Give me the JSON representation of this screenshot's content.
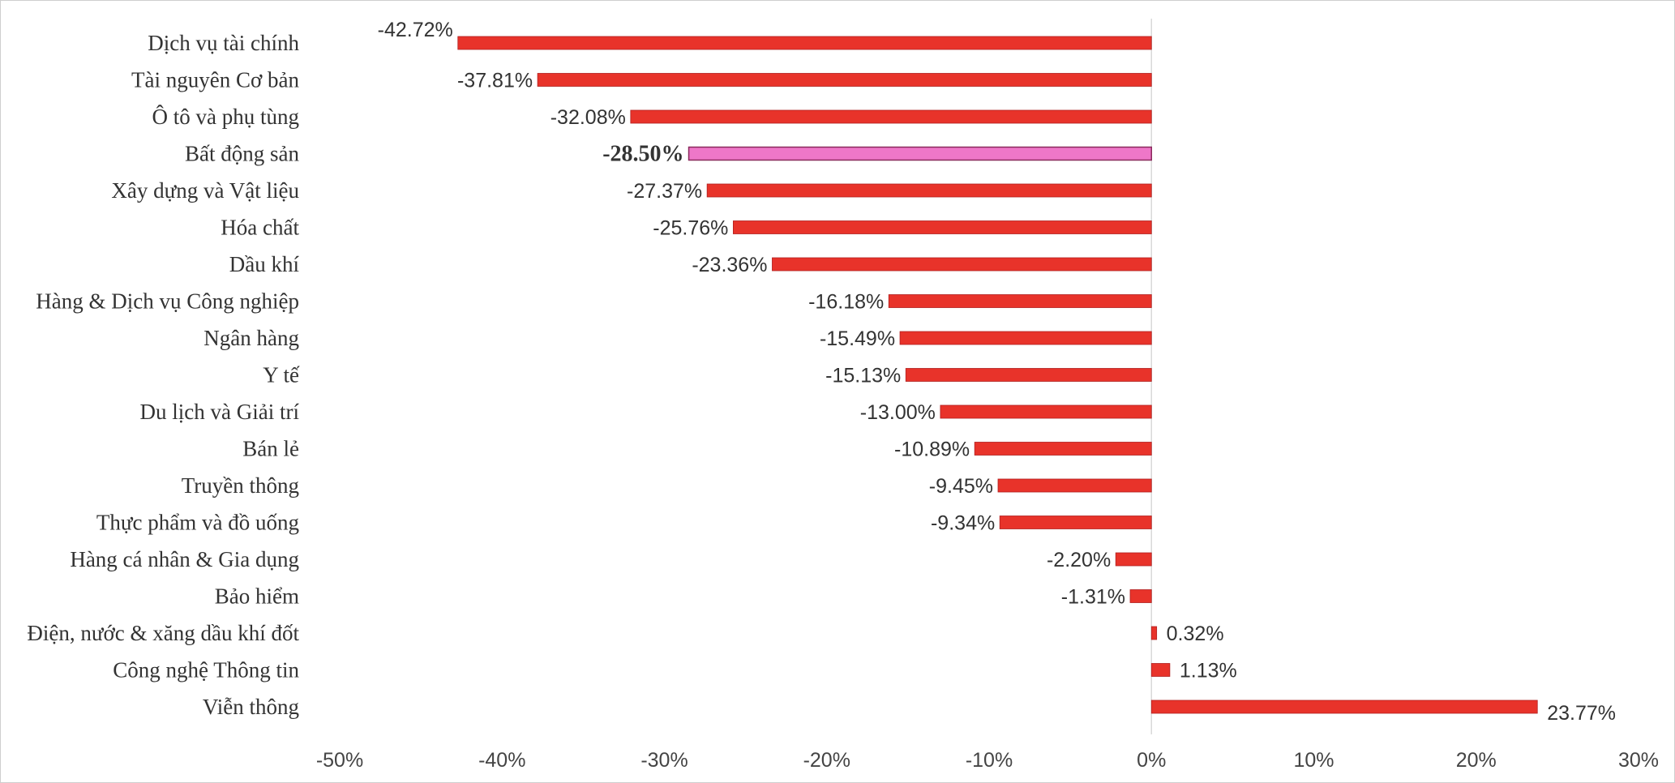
{
  "chart_data": {
    "type": "bar",
    "orientation": "horizontal",
    "title": "",
    "xlabel": "",
    "ylabel": "",
    "xlim": [
      -50,
      30
    ],
    "x_ticks": [
      -50,
      -40,
      -30,
      -20,
      -10,
      0,
      10,
      20,
      30
    ],
    "x_tick_labels": [
      "-50%",
      "-40%",
      "-30%",
      "-20%",
      "-10%",
      "0%",
      "10%",
      "20%",
      "30%"
    ],
    "grid": false,
    "legend": "none",
    "colors": {
      "default": "#e8332a",
      "highlight": "#ee77c8",
      "highlight_text": "#e060c0",
      "zero_line": "#d9d9d9"
    },
    "categories": [
      "Dịch vụ tài chính",
      "Tài nguyên Cơ bản",
      "Ô tô và phụ tùng",
      "Bất động sản",
      "Xây dựng và Vật liệu",
      "Hóa chất",
      "Dầu khí",
      "Hàng & Dịch vụ Công nghiệp",
      "Ngân hàng",
      "Y tế",
      "Du lịch và Giải trí",
      "Bán lẻ",
      "Truyền thông",
      "Thực phẩm và đồ uống",
      "Hàng cá nhân & Gia dụng",
      "Bảo hiểm",
      "Điện, nước & xăng dầu khí  đốt",
      "Công nghệ  Thông tin",
      "Viễn thông"
    ],
    "values": [
      -42.72,
      -37.81,
      -32.08,
      -28.5,
      -27.37,
      -25.76,
      -23.36,
      -16.18,
      -15.49,
      -15.13,
      -13.0,
      -10.89,
      -9.45,
      -9.34,
      -2.2,
      -1.31,
      0.32,
      1.13,
      23.77
    ],
    "value_labels": [
      "-42.72%",
      "-37.81%",
      "-32.08%",
      "-28.50%",
      "-27.37%",
      "-25.76%",
      "-23.36%",
      "-16.18%",
      "-15.49%",
      "-15.13%",
      "-13.00%",
      "-10.89%",
      "-9.45%",
      "-9.34%",
      "-2.20%",
      "-1.31%",
      "0.32%",
      "1.13%",
      "23.77%"
    ],
    "highlight_index": 3
  }
}
